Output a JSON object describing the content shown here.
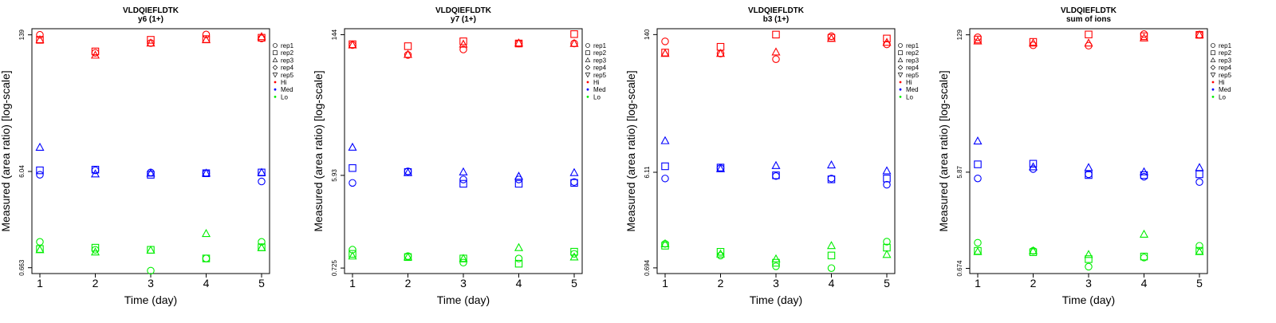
{
  "chart_data": [
    {
      "type": "scatter",
      "title": "VLDQIEFLDTK",
      "subtitle": "y6 (1+)",
      "xlabel": "Time (day)",
      "ylabel": "Measured (area ratio) [log-scale]",
      "x_ticks": [
        "1",
        "2",
        "3",
        "4",
        "5"
      ],
      "y_ticks": [
        {
          "label": "0.663",
          "value": 0.663
        },
        {
          "label": "6.04",
          "value": 6.04
        },
        {
          "label": "139",
          "value": 139
        }
      ],
      "ylim": [
        0.58,
        160
      ],
      "y_scale": "log",
      "legend": {
        "position": "right",
        "replicates": [
          "rep1",
          "rep2",
          "rep3",
          "rep4",
          "rep5"
        ],
        "groups": [
          "Hi",
          "Med",
          "Lo"
        ]
      },
      "colors": {
        "Hi": "#ff0000",
        "Med": "#0000ff",
        "Lo": "#00ee00"
      },
      "series": [
        {
          "group": "Hi",
          "rep": "rep1",
          "x": [
            1,
            2,
            3,
            4,
            5
          ],
          "y": [
            139,
            92,
            115,
            140,
            128
          ]
        },
        {
          "group": "Hi",
          "rep": "rep2",
          "x": [
            1,
            2,
            3,
            4,
            5
          ],
          "y": [
            124,
            95,
            124,
            126,
            130
          ]
        },
        {
          "group": "Hi",
          "rep": "rep3",
          "x": [
            1,
            2,
            3,
            4,
            5
          ],
          "y": [
            124,
            87,
            115,
            124,
            133
          ]
        },
        {
          "group": "Med",
          "rep": "rep1",
          "x": [
            1,
            2,
            3,
            4,
            5
          ],
          "y": [
            5.6,
            6.2,
            5.9,
            5.8,
            4.8
          ]
        },
        {
          "group": "Med",
          "rep": "rep2",
          "x": [
            1,
            2,
            3,
            4,
            5
          ],
          "y": [
            6.2,
            6.3,
            5.6,
            5.8,
            5.9
          ]
        },
        {
          "group": "Med",
          "rep": "rep3",
          "x": [
            1,
            2,
            3,
            4,
            5
          ],
          "y": [
            10.5,
            5.7,
            5.8,
            5.8,
            5.9
          ]
        },
        {
          "group": "Lo",
          "rep": "rep1",
          "x": [
            1,
            2,
            3,
            4,
            5
          ],
          "y": [
            1.2,
            1.0,
            0.62,
            0.82,
            1.2
          ]
        },
        {
          "group": "Lo",
          "rep": "rep2",
          "x": [
            1,
            2,
            3,
            4,
            5
          ],
          "y": [
            1.02,
            1.05,
            1.0,
            0.82,
            1.06
          ]
        },
        {
          "group": "Lo",
          "rep": "rep3",
          "x": [
            1,
            2,
            3,
            4,
            5
          ],
          "y": [
            1.0,
            0.95,
            0.99,
            1.45,
            1.05
          ]
        }
      ]
    },
    {
      "type": "scatter",
      "title": "VLDQIEFLDTK",
      "subtitle": "y7 (1+)",
      "xlabel": "Time (day)",
      "ylabel": "Measured (area ratio) [log-scale]",
      "x_ticks": [
        "1",
        "2",
        "3",
        "4",
        "5"
      ],
      "y_ticks": [
        {
          "label": "0.725",
          "value": 0.725
        },
        {
          "label": "5.93",
          "value": 5.93
        },
        {
          "label": "144",
          "value": 144
        }
      ],
      "ylim": [
        0.64,
        165
      ],
      "y_scale": "log",
      "legend": {
        "position": "right",
        "replicates": [
          "rep1",
          "rep2",
          "rep3",
          "rep4",
          "rep5"
        ],
        "groups": [
          "Hi",
          "Med",
          "Lo"
        ]
      },
      "colors": {
        "Hi": "#ff0000",
        "Med": "#0000ff",
        "Lo": "#00ee00"
      },
      "series": [
        {
          "group": "Hi",
          "rep": "rep1",
          "x": [
            1,
            2,
            3,
            4,
            5
          ],
          "y": [
            114,
            91,
            103,
            118,
            118
          ]
        },
        {
          "group": "Hi",
          "rep": "rep2",
          "x": [
            1,
            2,
            3,
            4,
            5
          ],
          "y": [
            116,
            111,
            124,
            118,
            146
          ]
        },
        {
          "group": "Hi",
          "rep": "rep3",
          "x": [
            1,
            2,
            3,
            4,
            5
          ],
          "y": [
            114,
            92,
            116,
            119,
            118
          ]
        },
        {
          "group": "Med",
          "rep": "rep1",
          "x": [
            1,
            2,
            3,
            4,
            5
          ],
          "y": [
            5.0,
            6.5,
            5.4,
            5.4,
            5.1
          ]
        },
        {
          "group": "Med",
          "rep": "rep2",
          "x": [
            1,
            2,
            3,
            4,
            5
          ],
          "y": [
            7.0,
            6.4,
            4.9,
            4.9,
            5.0
          ]
        },
        {
          "group": "Med",
          "rep": "rep3",
          "x": [
            1,
            2,
            3,
            4,
            5
          ],
          "y": [
            11.2,
            6.3,
            6.4,
            5.8,
            6.3
          ]
        },
        {
          "group": "Lo",
          "rep": "rep1",
          "x": [
            1,
            2,
            3,
            4,
            5
          ],
          "y": [
            1.1,
            0.95,
            0.82,
            0.9,
            1.0
          ]
        },
        {
          "group": "Lo",
          "rep": "rep2",
          "x": [
            1,
            2,
            3,
            4,
            5
          ],
          "y": [
            1.0,
            0.93,
            0.9,
            0.8,
            1.05
          ]
        },
        {
          "group": "Lo",
          "rep": "rep3",
          "x": [
            1,
            2,
            3,
            4,
            5
          ],
          "y": [
            0.95,
            0.93,
            0.9,
            1.15,
            0.93
          ]
        }
      ]
    },
    {
      "type": "scatter",
      "title": "VLDQIEFLDTK",
      "subtitle": "b3 (1+)",
      "xlabel": "Time (day)",
      "ylabel": "Measured (area ratio) [log-scale]",
      "x_ticks": [
        "1",
        "2",
        "3",
        "4",
        "5"
      ],
      "y_ticks": [
        {
          "label": "0.694",
          "value": 0.694
        },
        {
          "label": "6.11",
          "value": 6.11
        },
        {
          "label": "140",
          "value": 140
        }
      ],
      "ylim": [
        0.61,
        160
      ],
      "y_scale": "log",
      "legend": {
        "position": "right",
        "replicates": [
          "rep1",
          "rep2",
          "rep3",
          "rep4",
          "rep5"
        ],
        "groups": [
          "Hi",
          "Med",
          "Lo"
        ]
      },
      "colors": {
        "Hi": "#ff0000",
        "Med": "#0000ff",
        "Lo": "#00ee00"
      },
      "series": [
        {
          "group": "Hi",
          "rep": "rep1",
          "x": [
            1,
            2,
            3,
            4,
            5
          ],
          "y": [
            120,
            91,
            80,
            135,
            112
          ]
        },
        {
          "group": "Hi",
          "rep": "rep2",
          "x": [
            1,
            2,
            3,
            4,
            5
          ],
          "y": [
            93,
            106,
            140,
            130,
            128
          ]
        },
        {
          "group": "Hi",
          "rep": "rep3",
          "x": [
            1,
            2,
            3,
            4,
            5
          ],
          "y": [
            91,
            91,
            94,
            128,
            117
          ]
        },
        {
          "group": "Med",
          "rep": "rep1",
          "x": [
            1,
            2,
            3,
            4,
            5
          ],
          "y": [
            5.3,
            6.7,
            5.6,
            5.3,
            4.6
          ]
        },
        {
          "group": "Med",
          "rep": "rep2",
          "x": [
            1,
            2,
            3,
            4,
            5
          ],
          "y": [
            7.0,
            6.8,
            5.7,
            5.2,
            5.3
          ]
        },
        {
          "group": "Med",
          "rep": "rep3",
          "x": [
            1,
            2,
            3,
            4,
            5
          ],
          "y": [
            12.5,
            6.6,
            7.1,
            7.2,
            6.3
          ]
        },
        {
          "group": "Lo",
          "rep": "rep1",
          "x": [
            1,
            2,
            3,
            4,
            5
          ],
          "y": [
            1.2,
            0.92,
            0.72,
            0.69,
            1.26
          ]
        },
        {
          "group": "Lo",
          "rep": "rep2",
          "x": [
            1,
            2,
            3,
            4,
            5
          ],
          "y": [
            1.15,
            1.0,
            0.78,
            0.92,
            1.1
          ]
        },
        {
          "group": "Lo",
          "rep": "rep3",
          "x": [
            1,
            2,
            3,
            4,
            5
          ],
          "y": [
            1.2,
            0.95,
            0.85,
            1.15,
            0.94
          ]
        }
      ]
    },
    {
      "type": "scatter",
      "title": "VLDQIEFLDTK",
      "subtitle": "sum of ions",
      "xlabel": "Time (day)",
      "ylabel": "Measured (area ratio) [log-scale]",
      "x_ticks": [
        "1",
        "2",
        "3",
        "4",
        "5"
      ],
      "y_ticks": [
        {
          "label": "0.674",
          "value": 0.674
        },
        {
          "label": "5.87",
          "value": 5.87
        },
        {
          "label": "129",
          "value": 129
        }
      ],
      "ylim": [
        0.6,
        148
      ],
      "y_scale": "log",
      "legend": {
        "position": "right",
        "replicates": [
          "rep1",
          "rep2",
          "rep3",
          "rep4",
          "rep5"
        ],
        "groups": [
          "Hi",
          "Med",
          "Lo"
        ]
      },
      "colors": {
        "Hi": "#ff0000",
        "Med": "#0000ff",
        "Lo": "#00ee00"
      },
      "series": [
        {
          "group": "Hi",
          "rep": "rep1",
          "x": [
            1,
            2,
            3,
            4,
            5
          ],
          "y": [
            122,
            102,
            101,
            131,
            129
          ]
        },
        {
          "group": "Hi",
          "rep": "rep2",
          "x": [
            1,
            2,
            3,
            4,
            5
          ],
          "y": [
            116,
            110,
            130,
            125,
            129
          ]
        },
        {
          "group": "Hi",
          "rep": "rep3",
          "x": [
            1,
            2,
            3,
            4,
            5
          ],
          "y": [
            112,
            107,
            107,
            120,
            129
          ]
        },
        {
          "group": "Med",
          "rep": "rep1",
          "x": [
            1,
            2,
            3,
            4,
            5
          ],
          "y": [
            5.1,
            6.3,
            5.6,
            5.3,
            4.7
          ]
        },
        {
          "group": "Med",
          "rep": "rep2",
          "x": [
            1,
            2,
            3,
            4,
            5
          ],
          "y": [
            7.0,
            7.1,
            5.5,
            5.5,
            5.6
          ]
        },
        {
          "group": "Med",
          "rep": "rep3",
          "x": [
            1,
            2,
            3,
            4,
            5
          ],
          "y": [
            11.8,
            6.6,
            6.5,
            5.9,
            6.5
          ]
        },
        {
          "group": "Lo",
          "rep": "rep1",
          "x": [
            1,
            2,
            3,
            4,
            5
          ],
          "y": [
            1.2,
            1.0,
            0.7,
            0.86,
            1.12
          ]
        },
        {
          "group": "Lo",
          "rep": "rep2",
          "x": [
            1,
            2,
            3,
            4,
            5
          ],
          "y": [
            1.0,
            0.97,
            0.83,
            0.88,
            1.0
          ]
        },
        {
          "group": "Lo",
          "rep": "rep3",
          "x": [
            1,
            2,
            3,
            4,
            5
          ],
          "y": [
            0.98,
            1.0,
            0.92,
            1.45,
            0.98
          ]
        }
      ]
    }
  ]
}
